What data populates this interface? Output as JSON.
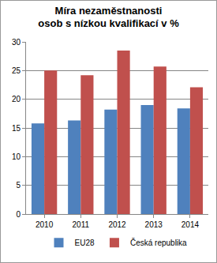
{
  "chart_data": {
    "type": "bar",
    "title": "Míra nezaměstnanosti\nosob s nízkou kvalifikací v %",
    "categories": [
      "2010",
      "2011",
      "2012",
      "2013",
      "2014"
    ],
    "series": [
      {
        "name": "EU28",
        "color": "#4f81bd",
        "values": [
          15.8,
          16.3,
          18.2,
          19.0,
          18.4
        ]
      },
      {
        "name": "Česká republika",
        "color": "#c0504d",
        "values": [
          25.0,
          24.2,
          28.5,
          25.7,
          22.1
        ]
      }
    ],
    "ylim": [
      0,
      30
    ],
    "yticks": [
      0,
      5,
      10,
      15,
      20,
      25,
      30
    ],
    "grid": true,
    "legend": "bottom"
  }
}
